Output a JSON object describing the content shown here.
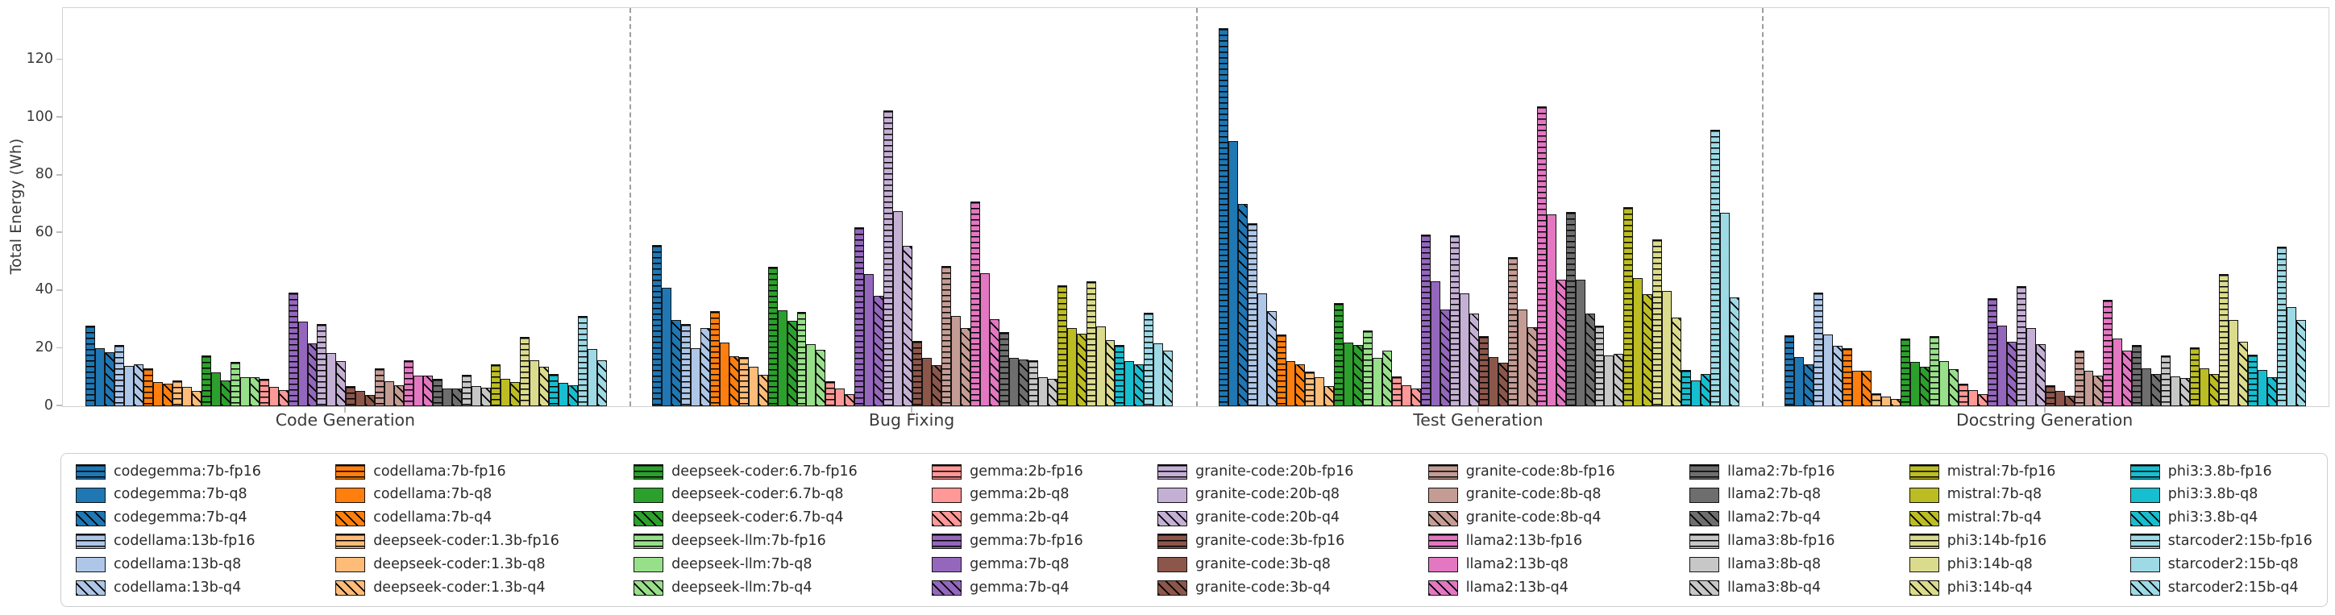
{
  "chart_data": {
    "type": "bar",
    "title": "",
    "ylabel": "Total Energy (Wh)",
    "xlabel": "",
    "ylim": [
      0,
      138
    ],
    "yticks": [
      0,
      20,
      40,
      60,
      80,
      100,
      120
    ],
    "grid": false,
    "legend_position": "bottom",
    "legend_columns": 9,
    "hatch_meaning": {
      "fp16": "horizontal-stripes",
      "q8": "solid",
      "q4": "diagonal-stripes"
    },
    "categories": [
      "Code Generation",
      "Bug Fixing",
      "Test Generation",
      "Docstring Generation"
    ],
    "series": [
      {
        "name": "codegemma:7b-fp16",
        "color": "#1f77b4",
        "hatch": "fp16",
        "values": [
          28.0,
          56.0,
          131.0,
          24.5
        ]
      },
      {
        "name": "codegemma:7b-q8",
        "color": "#1f77b4",
        "hatch": "q8",
        "values": [
          20.0,
          41.0,
          92.0,
          17.0
        ]
      },
      {
        "name": "codegemma:7b-q4",
        "color": "#1f77b4",
        "hatch": "q4",
        "values": [
          18.7,
          30.0,
          70.0,
          14.5
        ]
      },
      {
        "name": "codellama:13b-fp16",
        "color": "#aec7e8",
        "hatch": "fp16",
        "values": [
          21.3,
          28.5,
          63.5,
          39.5
        ]
      },
      {
        "name": "codellama:13b-q8",
        "color": "#aec7e8",
        "hatch": "q8",
        "values": [
          14.0,
          20.0,
          39.0,
          25.0
        ]
      },
      {
        "name": "codellama:13b-q4",
        "color": "#aec7e8",
        "hatch": "q4",
        "values": [
          14.6,
          27.0,
          33.0,
          21.0
        ]
      },
      {
        "name": "codellama:7b-fp16",
        "color": "#ff7f0e",
        "hatch": "fp16",
        "values": [
          13.1,
          33.0,
          25.0,
          20.0
        ]
      },
      {
        "name": "codellama:7b-q8",
        "color": "#ff7f0e",
        "hatch": "q8",
        "values": [
          8.5,
          22.0,
          15.7,
          12.2
        ]
      },
      {
        "name": "codellama:7b-q4",
        "color": "#ff7f0e",
        "hatch": "q4",
        "values": [
          7.8,
          17.3,
          14.5,
          12.2
        ]
      },
      {
        "name": "deepseek-coder:1.3b-fp16",
        "color": "#ffbb78",
        "hatch": "fp16",
        "values": [
          8.9,
          17.1,
          12.0,
          4.5
        ]
      },
      {
        "name": "deepseek-coder:1.3b-q8",
        "color": "#ffbb78",
        "hatch": "q8",
        "values": [
          6.6,
          13.8,
          10.1,
          3.3
        ]
      },
      {
        "name": "deepseek-coder:1.3b-q4",
        "color": "#ffbb78",
        "hatch": "q4",
        "values": [
          5.3,
          10.8,
          7.1,
          2.4
        ]
      },
      {
        "name": "deepseek-coder:6.7b-fp16",
        "color": "#2ca02c",
        "hatch": "fp16",
        "values": [
          17.6,
          48.3,
          35.7,
          23.6
        ]
      },
      {
        "name": "deepseek-coder:6.7b-q8",
        "color": "#2ca02c",
        "hatch": "q8",
        "values": [
          11.7,
          33.2,
          22.0,
          15.3
        ]
      },
      {
        "name": "deepseek-coder:6.7b-q4",
        "color": "#2ca02c",
        "hatch": "q4",
        "values": [
          9.0,
          29.5,
          21.3,
          13.6
        ]
      },
      {
        "name": "deepseek-llm:7b-fp16",
        "color": "#98df8a",
        "hatch": "fp16",
        "values": [
          15.3,
          32.6,
          26.2,
          24.4
        ]
      },
      {
        "name": "deepseek-llm:7b-q8",
        "color": "#98df8a",
        "hatch": "q8",
        "values": [
          10.0,
          21.6,
          16.7,
          15.7
        ]
      },
      {
        "name": "deepseek-llm:7b-q4",
        "color": "#98df8a",
        "hatch": "q4",
        "values": [
          10.0,
          19.6,
          19.2,
          12.9
        ]
      },
      {
        "name": "gemma:2b-fp16",
        "color": "#ff9896",
        "hatch": "fp16",
        "values": [
          9.4,
          8.6,
          10.4,
          7.8
        ]
      },
      {
        "name": "gemma:2b-q8",
        "color": "#ff9896",
        "hatch": "q8",
        "values": [
          6.6,
          6.2,
          7.3,
          5.7
        ]
      },
      {
        "name": "gemma:2b-q4",
        "color": "#ff9896",
        "hatch": "q4",
        "values": [
          5.5,
          4.3,
          6.2,
          4.3
        ]
      },
      {
        "name": "gemma:7b-fp16",
        "color": "#9467bd",
        "hatch": "fp16",
        "values": [
          39.3,
          62.0,
          59.4,
          37.3
        ]
      },
      {
        "name": "gemma:7b-q8",
        "color": "#9467bd",
        "hatch": "q8",
        "values": [
          29.2,
          45.9,
          43.4,
          27.8
        ]
      },
      {
        "name": "gemma:7b-q4",
        "color": "#9467bd",
        "hatch": "q4",
        "values": [
          21.9,
          38.2,
          33.6,
          22.4
        ]
      },
      {
        "name": "granite-code:20b-fp16",
        "color": "#c5b0d5",
        "hatch": "fp16",
        "values": [
          28.4,
          102.5,
          59.1,
          41.6
        ]
      },
      {
        "name": "granite-code:20b-q8",
        "color": "#c5b0d5",
        "hatch": "q8",
        "values": [
          18.5,
          67.5,
          39.0,
          27.1
        ]
      },
      {
        "name": "granite-code:20b-q4",
        "color": "#c5b0d5",
        "hatch": "q4",
        "values": [
          15.7,
          55.5,
          32.0,
          21.5
        ]
      },
      {
        "name": "granite-code:3b-fp16",
        "color": "#8c564b",
        "hatch": "fp16",
        "values": [
          7.0,
          22.5,
          24.3,
          7.3
        ]
      },
      {
        "name": "granite-code:3b-q8",
        "color": "#8c564b",
        "hatch": "q8",
        "values": [
          5.4,
          16.8,
          17.1,
          5.2
        ]
      },
      {
        "name": "granite-code:3b-q4",
        "color": "#8c564b",
        "hatch": "q4",
        "values": [
          3.9,
          14.2,
          15.0,
          3.6
        ]
      },
      {
        "name": "granite-code:8b-fp16",
        "color": "#c49c94",
        "hatch": "fp16",
        "values": [
          13.0,
          48.5,
          51.8,
          19.2
        ]
      },
      {
        "name": "granite-code:8b-q8",
        "color": "#c49c94",
        "hatch": "q8",
        "values": [
          8.7,
          31.2,
          33.4,
          12.4
        ]
      },
      {
        "name": "granite-code:8b-q4",
        "color": "#c49c94",
        "hatch": "q4",
        "values": [
          7.4,
          27.0,
          27.3,
          10.5
        ]
      },
      {
        "name": "llama2:13b-fp16",
        "color": "#e377c2",
        "hatch": "fp16",
        "values": [
          15.8,
          71.0,
          104.0,
          36.8
        ]
      },
      {
        "name": "llama2:13b-q8",
        "color": "#e377c2",
        "hatch": "q8",
        "values": [
          10.7,
          46.0,
          66.6,
          23.5
        ]
      },
      {
        "name": "llama2:13b-q4",
        "color": "#e377c2",
        "hatch": "q4",
        "values": [
          10.7,
          30.2,
          44.0,
          19.3
        ]
      },
      {
        "name": "llama2:7b-fp16",
        "color": "#6e6e6e",
        "hatch": "fp16",
        "values": [
          9.4,
          25.6,
          67.3,
          21.1
        ]
      },
      {
        "name": "llama2:7b-q8",
        "color": "#6e6e6e",
        "hatch": "q8",
        "values": [
          6.2,
          16.8,
          43.8,
          13.1
        ]
      },
      {
        "name": "llama2:7b-q4",
        "color": "#6e6e6e",
        "hatch": "q4",
        "values": [
          6.2,
          16.3,
          32.0,
          11.3
        ]
      },
      {
        "name": "llama3:8b-fp16",
        "color": "#c7c7c7",
        "hatch": "fp16",
        "values": [
          11.0,
          15.8,
          27.8,
          17.6
        ]
      },
      {
        "name": "llama3:8b-q8",
        "color": "#c7c7c7",
        "hatch": "q8",
        "values": [
          7.0,
          10.1,
          17.6,
          10.3
        ]
      },
      {
        "name": "llama3:8b-q4",
        "color": "#c7c7c7",
        "hatch": "q4",
        "values": [
          6.3,
          9.4,
          18.2,
          9.7
        ]
      },
      {
        "name": "mistral:7b-fp16",
        "color": "#bcbd22",
        "hatch": "fp16",
        "values": [
          14.5,
          41.8,
          69.0,
          20.4
        ]
      },
      {
        "name": "mistral:7b-q8",
        "color": "#bcbd22",
        "hatch": "q8",
        "values": [
          9.6,
          27.1,
          44.5,
          13.1
        ]
      },
      {
        "name": "mistral:7b-q4",
        "color": "#bcbd22",
        "hatch": "q4",
        "values": [
          8.4,
          25.2,
          38.8,
          11.1
        ]
      },
      {
        "name": "phi3:14b-fp16",
        "color": "#dbdb8d",
        "hatch": "fp16",
        "values": [
          23.9,
          43.4,
          57.8,
          45.9
        ]
      },
      {
        "name": "phi3:14b-q8",
        "color": "#dbdb8d",
        "hatch": "q8",
        "values": [
          15.8,
          27.6,
          39.9,
          29.9
        ]
      },
      {
        "name": "phi3:14b-q4",
        "color": "#dbdb8d",
        "hatch": "q4",
        "values": [
          13.8,
          23.0,
          30.6,
          22.4
        ]
      },
      {
        "name": "phi3:3.8b-fp16",
        "color": "#17becf",
        "hatch": "fp16",
        "values": [
          11.3,
          21.2,
          12.7,
          18.0
        ]
      },
      {
        "name": "phi3:3.8b-q8",
        "color": "#17becf",
        "hatch": "q8",
        "values": [
          8.0,
          15.7,
          9.0,
          12.5
        ]
      },
      {
        "name": "phi3:3.8b-q4",
        "color": "#17becf",
        "hatch": "q4",
        "values": [
          7.4,
          14.6,
          11.1,
          10.1
        ]
      },
      {
        "name": "starcoder2:15b-fp16",
        "color": "#9edae5",
        "hatch": "fp16",
        "values": [
          31.3,
          32.4,
          95.7,
          55.4
        ]
      },
      {
        "name": "starcoder2:15b-q8",
        "color": "#9edae5",
        "hatch": "q8",
        "values": [
          19.8,
          21.8,
          67.0,
          34.3
        ]
      },
      {
        "name": "starcoder2:15b-q4",
        "color": "#9edae5",
        "hatch": "q4",
        "values": [
          15.9,
          19.2,
          37.6,
          29.9
        ]
      }
    ]
  }
}
